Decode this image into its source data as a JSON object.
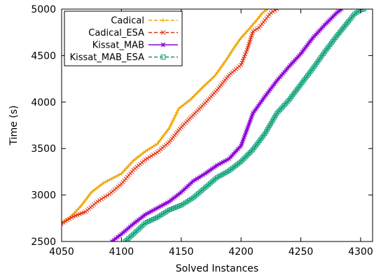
{
  "chart_data": {
    "type": "line",
    "title": "",
    "xlabel": "Solved Instances",
    "ylabel": "Time (s)",
    "xlim": [
      4050,
      4310
    ],
    "ylim": [
      2500,
      5000
    ],
    "x_ticks": [
      "4050",
      "4100",
      "4150",
      "4200",
      "4250",
      "4300"
    ],
    "y_ticks": [
      "2500",
      "3000",
      "3500",
      "4000",
      "4500",
      "5000"
    ],
    "grid": false,
    "legend_position": "top-left",
    "series": [
      {
        "name": "Cadical",
        "color": "#f0a500",
        "marker": "plus",
        "x": [
          4050,
          4058,
          4066,
          4075,
          4085,
          4100,
          4110,
          4120,
          4130,
          4140,
          4148,
          4158,
          4168,
          4178,
          4188,
          4195,
          4200,
          4207,
          4213,
          4218,
          4222
        ],
        "y": [
          2700,
          2770,
          2880,
          3030,
          3130,
          3230,
          3370,
          3470,
          3550,
          3720,
          3930,
          4030,
          4160,
          4280,
          4460,
          4600,
          4690,
          4790,
          4880,
          4960,
          5000
        ]
      },
      {
        "name": "Cadical_ESA",
        "color": "#e03010",
        "marker": "cross",
        "x": [
          4050,
          4060,
          4070,
          4080,
          4090,
          4100,
          4110,
          4120,
          4130,
          4140,
          4150,
          4160,
          4170,
          4180,
          4190,
          4200,
          4205,
          4210,
          4215,
          4220,
          4225,
          4230
        ],
        "y": [
          2690,
          2770,
          2820,
          2930,
          3010,
          3120,
          3270,
          3380,
          3460,
          3570,
          3730,
          3860,
          3990,
          4130,
          4290,
          4400,
          4560,
          4760,
          4800,
          4880,
          4960,
          5000
        ]
      },
      {
        "name": "Kissat_MAB",
        "color": "#8a00d4",
        "marker": "star",
        "x": [
          4092,
          4100,
          4110,
          4120,
          4130,
          4140,
          4150,
          4160,
          4170,
          4180,
          4190,
          4200,
          4210,
          4220,
          4230,
          4240,
          4250,
          4260,
          4270,
          4280,
          4284
        ],
        "y": [
          2500,
          2580,
          2690,
          2790,
          2860,
          2930,
          3030,
          3150,
          3230,
          3320,
          3390,
          3530,
          3880,
          4060,
          4230,
          4380,
          4520,
          4690,
          4830,
          4960,
          5000
        ]
      },
      {
        "name": "Kissat_MAB_ESA",
        "color": "#009e73",
        "marker": "square",
        "x": [
          4103,
          4110,
          4120,
          4130,
          4140,
          4150,
          4160,
          4170,
          4180,
          4190,
          4200,
          4210,
          4220,
          4225,
          4230,
          4240,
          4250,
          4260,
          4270,
          4280,
          4290,
          4295,
          4300,
          4303
        ],
        "y": [
          2500,
          2580,
          2700,
          2760,
          2840,
          2890,
          2970,
          3080,
          3190,
          3260,
          3360,
          3490,
          3660,
          3770,
          3880,
          4020,
          4190,
          4360,
          4540,
          4710,
          4870,
          4950,
          4990,
          5000
        ]
      }
    ]
  }
}
